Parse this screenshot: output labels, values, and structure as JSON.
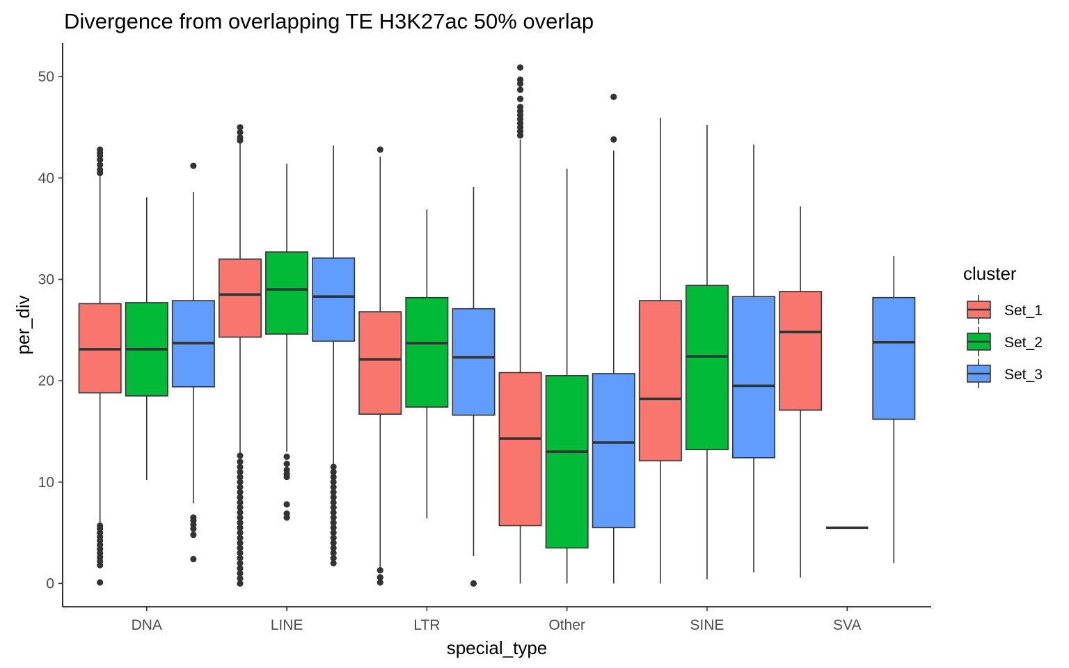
{
  "chart_data": {
    "type": "boxplot",
    "title": "Divergence from overlapping TE H3K27ac 50% overlap",
    "xlabel": "special_type",
    "ylabel": "per_div",
    "ylim": [
      -2.3,
      53.3
    ],
    "yticks": [
      0,
      10,
      20,
      30,
      40,
      50
    ],
    "grid": false,
    "legend": {
      "title": "cluster",
      "position": "right"
    },
    "categories": [
      "DNA",
      "LINE",
      "LTR",
      "Other",
      "SINE",
      "SVA"
    ],
    "series": [
      {
        "name": "Set_1",
        "color": "#F8766D",
        "boxes": [
          {
            "category": "DNA",
            "min": 5.9,
            "q1": 18.8,
            "median": 23.1,
            "q3": 27.6,
            "max": 42.3,
            "outliers": [
              42.8,
              42.5,
              42.2,
              41.8,
              41.3,
              40.8,
              40.5,
              5.7,
              5.4,
              5.0,
              4.6,
              4.2,
              3.8,
              3.4,
              3.0,
              2.6,
              2.2,
              1.8,
              0.1
            ]
          },
          {
            "category": "LINE",
            "min": 12.8,
            "q1": 24.3,
            "median": 28.5,
            "q3": 32.0,
            "max": 43.7,
            "outliers": [
              45.0,
              44.5,
              44.0,
              43.7,
              12.6,
              12.0,
              11.5,
              11.0,
              10.5,
              10.0,
              9.5,
              9.0,
              8.5,
              8.0,
              7.5,
              7.0,
              6.5,
              6.0,
              5.5,
              5.0,
              4.5,
              4.0,
              3.5,
              3.0,
              2.5,
              2.0,
              1.5,
              1.0,
              0.5,
              0.0
            ]
          },
          {
            "category": "LTR",
            "min": 1.5,
            "q1": 16.7,
            "median": 22.1,
            "q3": 26.8,
            "max": 42.1,
            "outliers": [
              42.8,
              1.3,
              0.6,
              0.1
            ]
          },
          {
            "category": "Other",
            "min": 0.0,
            "q1": 5.7,
            "median": 14.3,
            "q3": 20.8,
            "max": 43.8,
            "outliers": [
              50.9,
              49.7,
              49.3,
              48.7,
              47.8,
              47.0,
              46.6,
              46.2,
              45.8,
              45.4,
              45.0,
              44.6,
              44.2
            ]
          },
          {
            "category": "SINE",
            "min": 0.0,
            "q1": 12.1,
            "median": 18.2,
            "q3": 27.9,
            "max": 45.9,
            "outliers": []
          },
          {
            "category": "SVA",
            "min": 0.6,
            "q1": 17.1,
            "median": 24.8,
            "q3": 28.8,
            "max": 37.2,
            "outliers": []
          }
        ]
      },
      {
        "name": "Set_2",
        "color": "#00BA38",
        "boxes": [
          {
            "category": "DNA",
            "min": 10.2,
            "q1": 18.5,
            "median": 23.1,
            "q3": 27.7,
            "max": 38.1,
            "outliers": []
          },
          {
            "category": "LINE",
            "min": 13.0,
            "q1": 24.6,
            "median": 29.0,
            "q3": 32.7,
            "max": 41.4,
            "outliers": [
              12.5,
              11.8,
              11.2,
              10.8,
              10.5,
              7.8,
              6.9,
              6.5
            ]
          },
          {
            "category": "LTR",
            "min": 6.4,
            "q1": 17.4,
            "median": 23.7,
            "q3": 28.2,
            "max": 36.9,
            "outliers": []
          },
          {
            "category": "Other",
            "min": 0.0,
            "q1": 3.5,
            "median": 13.0,
            "q3": 20.5,
            "max": 40.9,
            "outliers": []
          },
          {
            "category": "SINE",
            "min": 0.4,
            "q1": 13.2,
            "median": 22.4,
            "q3": 29.4,
            "max": 45.2,
            "outliers": []
          },
          {
            "category": "SVA",
            "min": 5.5,
            "q1": 5.5,
            "median": 5.5,
            "q3": 5.5,
            "max": 5.5,
            "outliers": []
          }
        ]
      },
      {
        "name": "Set_3",
        "color": "#619CFF",
        "boxes": [
          {
            "category": "DNA",
            "min": 7.9,
            "q1": 19.4,
            "median": 23.7,
            "q3": 27.9,
            "max": 38.6,
            "outliers": [
              41.2,
              6.5,
              6.2,
              5.8,
              5.4,
              4.8,
              2.4
            ]
          },
          {
            "category": "LINE",
            "min": 11.6,
            "q1": 23.9,
            "median": 28.3,
            "q3": 32.1,
            "max": 43.2,
            "outliers": [
              11.5,
              11.0,
              10.5,
              10.0,
              9.5,
              9.0,
              8.5,
              8.0,
              7.5,
              7.0,
              6.5,
              6.0,
              5.5,
              5.0,
              4.5,
              4.0,
              3.5,
              3.0,
              2.5,
              2.0
            ]
          },
          {
            "category": "LTR",
            "min": 2.7,
            "q1": 16.6,
            "median": 22.3,
            "q3": 27.1,
            "max": 39.1,
            "outliers": [
              0.0
            ]
          },
          {
            "category": "Other",
            "min": 0.0,
            "q1": 5.5,
            "median": 13.9,
            "q3": 20.7,
            "max": 42.7,
            "outliers": [
              48.0,
              43.8
            ]
          },
          {
            "category": "SINE",
            "min": 1.1,
            "q1": 12.4,
            "median": 19.5,
            "q3": 28.3,
            "max": 43.3,
            "outliers": []
          },
          {
            "category": "SVA",
            "min": 2.0,
            "q1": 16.2,
            "median": 23.8,
            "q3": 28.2,
            "max": 32.3,
            "outliers": []
          }
        ]
      }
    ]
  }
}
